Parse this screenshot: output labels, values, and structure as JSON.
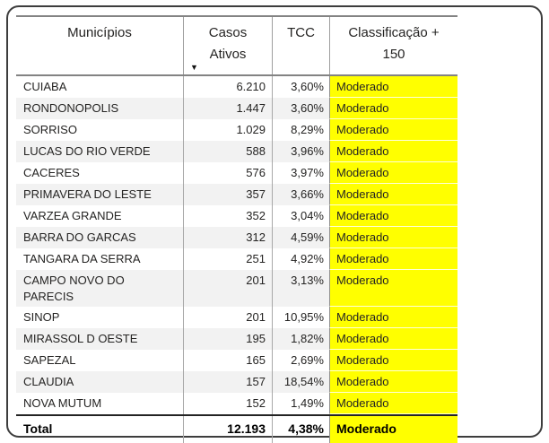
{
  "chart_data": {
    "type": "table",
    "columns": [
      {
        "label": "Municípios",
        "align": "left"
      },
      {
        "label": "Casos Ativos",
        "align": "right",
        "sorted": "descending"
      },
      {
        "label": "TCC",
        "align": "right"
      },
      {
        "label": "Classificação + 150",
        "align": "left"
      }
    ],
    "rows": [
      {
        "municipio": "CUIABA",
        "casos_ativos": "6.210",
        "tcc": "3,60%",
        "classificacao": "Moderado"
      },
      {
        "municipio": "RONDONOPOLIS",
        "casos_ativos": "1.447",
        "tcc": "3,60%",
        "classificacao": "Moderado"
      },
      {
        "municipio": "SORRISO",
        "casos_ativos": "1.029",
        "tcc": "8,29%",
        "classificacao": "Moderado"
      },
      {
        "municipio": "LUCAS DO RIO VERDE",
        "casos_ativos": "588",
        "tcc": "3,96%",
        "classificacao": "Moderado"
      },
      {
        "municipio": "CACERES",
        "casos_ativos": "576",
        "tcc": "3,97%",
        "classificacao": "Moderado"
      },
      {
        "municipio": "PRIMAVERA DO LESTE",
        "casos_ativos": "357",
        "tcc": "3,66%",
        "classificacao": "Moderado"
      },
      {
        "municipio": "VARZEA GRANDE",
        "casos_ativos": "352",
        "tcc": "3,04%",
        "classificacao": "Moderado"
      },
      {
        "municipio": "BARRA DO GARCAS",
        "casos_ativos": "312",
        "tcc": "4,59%",
        "classificacao": "Moderado"
      },
      {
        "municipio": "TANGARA DA SERRA",
        "casos_ativos": "251",
        "tcc": "4,92%",
        "classificacao": "Moderado"
      },
      {
        "municipio": "CAMPO NOVO DO PARECIS",
        "casos_ativos": "201",
        "tcc": "3,13%",
        "classificacao": "Moderado"
      },
      {
        "municipio": "SINOP",
        "casos_ativos": "201",
        "tcc": "10,95%",
        "classificacao": "Moderado"
      },
      {
        "municipio": "MIRASSOL D OESTE",
        "casos_ativos": "195",
        "tcc": "1,82%",
        "classificacao": "Moderado"
      },
      {
        "municipio": "SAPEZAL",
        "casos_ativos": "165",
        "tcc": "2,69%",
        "classificacao": "Moderado"
      },
      {
        "municipio": "CLAUDIA",
        "casos_ativos": "157",
        "tcc": "18,54%",
        "classificacao": "Moderado"
      },
      {
        "municipio": "NOVA MUTUM",
        "casos_ativos": "152",
        "tcc": "1,49%",
        "classificacao": "Moderado"
      }
    ],
    "total": {
      "municipio": "Total",
      "casos_ativos": "12.193",
      "tcc": "4,38%",
      "classificacao": "Moderado"
    }
  },
  "icons": {
    "sort_descending": "▼"
  },
  "colors": {
    "classification_highlight": "#FFFF00",
    "row_band": "#F2F2F2"
  }
}
